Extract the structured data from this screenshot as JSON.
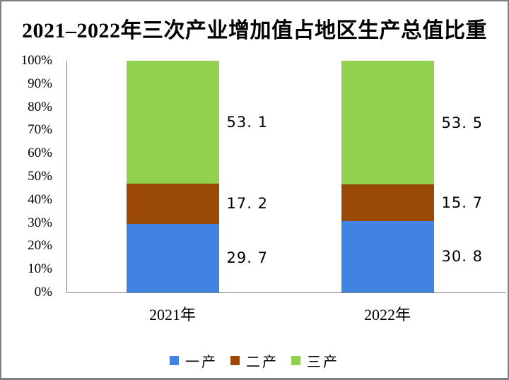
{
  "title": "2021–2022年三次产业增加值占地区生产总值比重",
  "chart_data": {
    "type": "bar",
    "stacked": true,
    "title": "2021–2022年三次产业增加值占地区生产总值比重",
    "categories": [
      "2021年",
      "2022年"
    ],
    "series": [
      {
        "name": "一产",
        "color": "#4183E3",
        "values": [
          29.7,
          30.8
        ]
      },
      {
        "name": "二产",
        "color": "#9A4A06",
        "values": [
          17.2,
          15.7
        ]
      },
      {
        "name": "三产",
        "color": "#92D050",
        "values": [
          53.1,
          53.5
        ]
      }
    ],
    "data_labels": [
      [
        "29. 7",
        "17. 2",
        "53. 1"
      ],
      [
        "30. 8",
        "15. 7",
        "53. 5"
      ]
    ],
    "xlabel": "",
    "ylabel": "",
    "ylim": [
      0,
      100
    ],
    "y_ticks": [
      "0%",
      "10%",
      "20%",
      "30%",
      "40%",
      "50%",
      "60%",
      "70%",
      "80%",
      "90%",
      "100%"
    ],
    "grid": false,
    "legend_position": "bottom",
    "axis_color": "#808080",
    "border_color": "#7F7F7F",
    "background": "#FFFFFF"
  }
}
